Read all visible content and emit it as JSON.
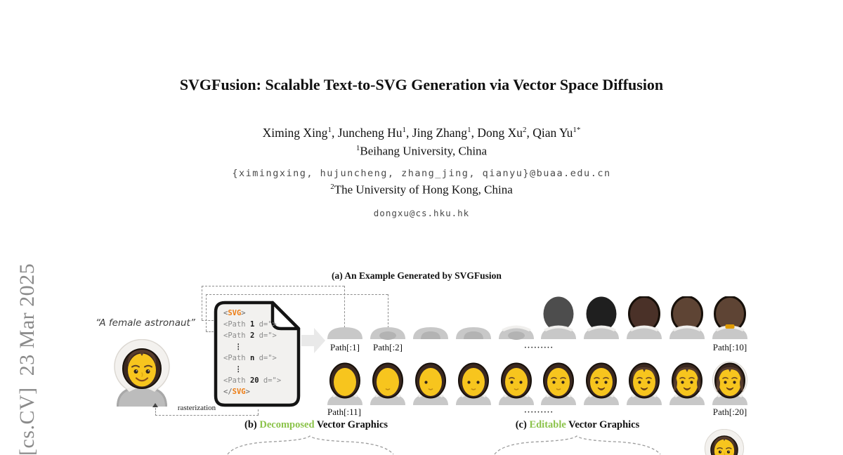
{
  "arxiv_stamp": "[cs.CV]  23 Mar 2025",
  "paper": {
    "title": "SVGFusion: Scalable Text-to-SVG Generation via Vector Space Diffusion",
    "authors": [
      {
        "name": "Ximing Xing",
        "sup": "1"
      },
      {
        "name": "Juncheng Hu",
        "sup": "1"
      },
      {
        "name": "Jing Zhang",
        "sup": "1"
      },
      {
        "name": "Dong Xu",
        "sup": "2"
      },
      {
        "name": "Qian Yu",
        "sup": "1*"
      }
    ],
    "affiliation1": {
      "sup": "1",
      "text": "Beihang University, China"
    },
    "email1": "{ximingxing, hujuncheng, zhang_jing, qianyu}@buaa.edu.cn",
    "affiliation2": {
      "sup": "2",
      "text": "The University of Hong Kong, China"
    },
    "email2": "dongxu@cs.hku.hk"
  },
  "figure": {
    "caption_a": "(a) An Example Generated by SVGFusion",
    "prompt": "“A female astronaut”",
    "rasterization_label": "rasterization",
    "code": {
      "open_lt": "<",
      "open_name": "SVG",
      "open_gt": ">",
      "close_lt": "</",
      "close_name": "SVG",
      "close_gt": ">",
      "path_lines": [
        {
          "pre": "<Path ",
          "num": "1",
          "post": " d=\">"
        },
        {
          "pre": "<Path ",
          "num": "2",
          "post": " d=\">"
        },
        {
          "dots": "⋮"
        },
        {
          "pre": "<Path ",
          "num": "n",
          "post": " d=\">"
        },
        {
          "dots": "⋮"
        },
        {
          "pre": "<Path ",
          "num": "20",
          "post": " d=\">"
        }
      ]
    },
    "row1": {
      "label_first": "Path[:1]",
      "label_second": "Path[:2]",
      "label_last": "Path[:10]",
      "dots": "·········",
      "stages": [
        {
          "name": "shoulders",
          "shade": 0
        },
        {
          "name": "shoulders-shaded",
          "shade": 1
        },
        {
          "name": "shoulders-shaded-2",
          "shade": 2
        },
        {
          "name": "shoulders-shaded-3",
          "shade": 2
        },
        {
          "name": "shoulders-collar",
          "shade": 1,
          "collar": true
        },
        {
          "name": "head-gray",
          "collar": true,
          "head": "#4d4d4d"
        },
        {
          "name": "head-black",
          "collar": true,
          "head": "#1f1f1f"
        },
        {
          "name": "head-dark-brown",
          "collar": true,
          "head": "#4a3128",
          "ring": "#17100a"
        },
        {
          "name": "head-brown",
          "collar": true,
          "head": "#5e4434",
          "ring": "#17100a"
        },
        {
          "name": "head-brown-visor",
          "collar": true,
          "head": "#5e4434",
          "ring": "#17100a",
          "mouthpiece": true
        }
      ]
    },
    "row2": {
      "label_first": "Path[:11]",
      "label_last": "Path[:20]",
      "dots": "·········",
      "stages": [
        {
          "name": "blank-face",
          "features": []
        },
        {
          "name": "face-mouth",
          "features": [
            "mouth"
          ]
        },
        {
          "name": "face-one-eye",
          "features": [
            "eyeL",
            "mouth"
          ]
        },
        {
          "name": "face-two-eyes",
          "features": [
            "eyeL",
            "eyeR",
            "mouth"
          ]
        },
        {
          "name": "face-one-brow",
          "features": [
            "eyeL",
            "eyeR",
            "browL",
            "mouth"
          ]
        },
        {
          "name": "face-two-brows",
          "features": [
            "eyeL",
            "eyeR",
            "browL",
            "browR",
            "mouth"
          ]
        },
        {
          "name": "face-smile",
          "features": [
            "eyeL",
            "eyeR",
            "browL",
            "browR",
            "smile"
          ]
        },
        {
          "name": "face-hair-top",
          "features": [
            "eyeL",
            "eyeR",
            "browL",
            "browR",
            "smile",
            "hairTop"
          ]
        },
        {
          "name": "face-hair-full",
          "features": [
            "eyeL",
            "eyeR",
            "browL",
            "browR",
            "smile",
            "hairFull"
          ]
        },
        {
          "name": "face-helmet-complete",
          "features": [
            "eyeL",
            "eyeR",
            "browL",
            "browR",
            "smile",
            "hairFull",
            "helmet"
          ]
        }
      ]
    },
    "caption_b": {
      "prefix": "(b) ",
      "highlight": "Decomposed",
      "suffix": " Vector Graphics"
    },
    "caption_c": {
      "prefix": "(c) ",
      "highlight": "Editable",
      "suffix": " Vector Graphics"
    },
    "colors": {
      "highlight_green": "#8bc34a",
      "tag_orange": "#ed7d14",
      "suit_gray": "#c8c8c8",
      "hair_dark": "#3a2820",
      "face_yellow": "#f7c51e",
      "helmet_white": "#f3f1ee",
      "visor_orange": "#e09b00"
    }
  }
}
